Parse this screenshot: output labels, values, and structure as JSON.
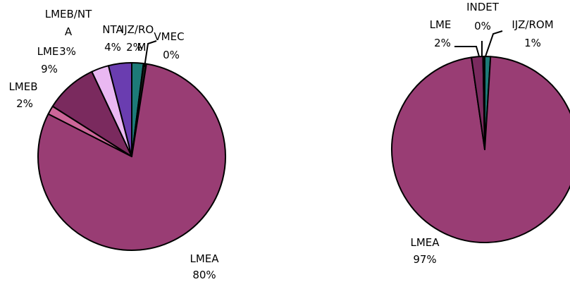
{
  "chart_data": [
    {
      "type": "pie",
      "slices": [
        {
          "label": "IJZ/ROM",
          "value": 2,
          "value_label": "2%",
          "color": "#1d7a78"
        },
        {
          "label": "VMEC",
          "value": 0.5,
          "value_label": "0%",
          "color": "#1a1a1a"
        },
        {
          "label": "LMEA",
          "value": 80,
          "value_label": "80%",
          "color": "#993d74"
        },
        {
          "label": "LMEB",
          "value": 1.5,
          "value_label": "2%",
          "color": "#cc6699"
        },
        {
          "label": "LME",
          "value": 9,
          "value_label": "9%",
          "color": "#7a2a5e"
        },
        {
          "label": "LMEB/NTA",
          "value": 3,
          "value_label": "3%",
          "color": "#eab8f2"
        },
        {
          "label": "NTA",
          "value": 4,
          "value_label": "4%",
          "color": "#6a3db0"
        }
      ]
    },
    {
      "type": "pie",
      "slices": [
        {
          "label": "IJZ/ROM",
          "value": 1,
          "value_label": "1%",
          "color": "#1d7a78"
        },
        {
          "label": "LMEA",
          "value": 97,
          "value_label": "97%",
          "color": "#993d74"
        },
        {
          "label": "LME",
          "value": 2,
          "value_label": "2%",
          "color": "#7a2a5e"
        },
        {
          "label": "INDET",
          "value": 0.3,
          "value_label": "0%",
          "color": "#1a1a1a"
        }
      ]
    }
  ]
}
